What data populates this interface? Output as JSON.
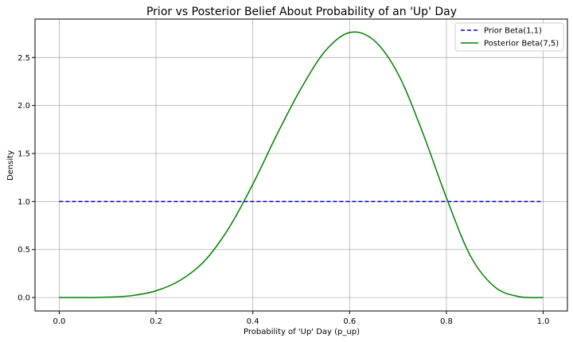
{
  "chart_data": {
    "type": "line",
    "title": "Prior vs Posterior Belief About Probability of an 'Up' Day",
    "xlabel": "Probability of 'Up' Day (p_up)",
    "ylabel": "Density",
    "xlim": [
      -0.05,
      1.05
    ],
    "ylim": [
      -0.14,
      2.9
    ],
    "xticks": [
      0.0,
      0.2,
      0.4,
      0.6,
      0.8,
      1.0
    ],
    "xtick_labels": [
      "0.0",
      "0.2",
      "0.4",
      "0.6",
      "0.8",
      "1.0"
    ],
    "yticks": [
      0.0,
      0.5,
      1.0,
      1.5,
      2.0,
      2.5
    ],
    "ytick_labels": [
      "0.0",
      "0.5",
      "1.0",
      "1.5",
      "2.0",
      "2.5"
    ],
    "grid": true,
    "legend_position": "top-right",
    "series": [
      {
        "name": "Prior Beta(1,1)",
        "color": "#0000cc",
        "style": "dashed",
        "x": [
          0.0,
          1.0
        ],
        "y": [
          1.0,
          1.0
        ]
      },
      {
        "name": "Posterior Beta(7,5)",
        "color": "#008000",
        "style": "solid",
        "x": [
          0.0,
          0.05,
          0.1,
          0.15,
          0.2,
          0.25,
          0.3,
          0.35,
          0.4,
          0.45,
          0.5,
          0.55,
          0.6,
          0.65,
          0.7,
          0.75,
          0.8,
          0.85,
          0.9,
          0.95,
          1.0
        ],
        "y": [
          0.0,
          0.0,
          0.004,
          0.02,
          0.07,
          0.18,
          0.38,
          0.72,
          1.18,
          1.7,
          2.18,
          2.57,
          2.76,
          2.68,
          2.33,
          1.73,
          1.04,
          0.43,
          0.11,
          0.01,
          0.0
        ]
      }
    ]
  }
}
